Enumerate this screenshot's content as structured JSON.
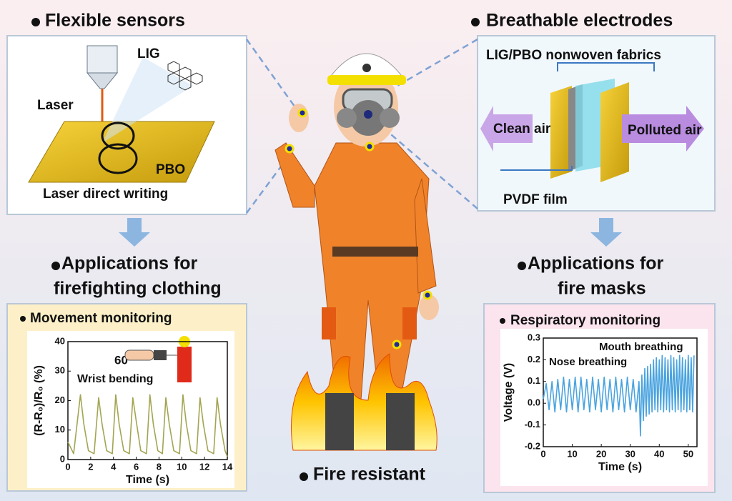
{
  "flexible_sensors": {
    "heading": "Flexible sensors",
    "lig": "LIG",
    "laser": "Laser",
    "pbo": "PBO",
    "caption": "Laser direct writing"
  },
  "breathable_electrodes": {
    "heading": "Breathable electrodes",
    "fabrics": "LIG/PBO nonwoven fabrics",
    "clean_air": "Clean air",
    "polluted_air": "Polluted air",
    "film": "PVDF film"
  },
  "clothing_applications": {
    "lines": [
      "Applications for",
      "firefighting clothing"
    ]
  },
  "mask_applications": {
    "lines": [
      "Applications for",
      "fire masks"
    ]
  },
  "fire_resistant": "Fire resistant",
  "movement_chart": {
    "type": "line",
    "title": "Movement monitoring",
    "ylabel": "(R-R₀)/R₀ (%)",
    "xlabel": "Time (s)",
    "annotations": [
      "60°",
      "Wrist bending"
    ],
    "color": "#a3a552",
    "xlim": [
      0,
      14
    ],
    "ylim": [
      0,
      40
    ],
    "xticks": [
      0,
      2,
      4,
      6,
      8,
      10,
      12,
      14
    ],
    "yticks": [
      0,
      10,
      20,
      30,
      40
    ],
    "x": [
      0,
      0.5,
      1.1,
      1.4,
      1.8,
      2.3,
      2.7,
      3.0,
      3.4,
      3.9,
      4.2,
      4.5,
      4.9,
      5.4,
      5.7,
      6.0,
      6.4,
      6.9,
      7.2,
      7.5,
      7.9,
      8.3,
      8.6,
      8.9,
      9.3,
      9.8,
      10.1,
      10.4,
      10.8,
      11.3,
      11.6,
      11.9,
      12.3,
      12.8,
      13.1,
      13.4,
      13.8,
      14
    ],
    "values": [
      6,
      2,
      22,
      12,
      3,
      2,
      21,
      12,
      3,
      2,
      22,
      12,
      3,
      2,
      21,
      13,
      3,
      2,
      22,
      12,
      3,
      2,
      21,
      12,
      3,
      2,
      22,
      12,
      3,
      2,
      21,
      12,
      3,
      2,
      21,
      12,
      3,
      1
    ]
  },
  "respiratory_chart": {
    "type": "line",
    "title": "Respiratory monitoring",
    "ylabel": "Voltage (V)",
    "xlabel": "Time (s)",
    "annotations": [
      "Mouth breathing",
      "Nose breathing"
    ],
    "color": "#4aa3df",
    "xlim": [
      0,
      53
    ],
    "ylim": [
      -0.2,
      0.3
    ],
    "xticks": [
      0,
      10,
      20,
      30,
      40,
      50
    ],
    "yticks": [
      -0.2,
      -0.1,
      {
        "value": 0,
        "label": "0.0"
      },
      0.1,
      0.2,
      0.3
    ],
    "x": [
      0,
      1,
      2,
      3,
      4,
      5,
      6,
      7,
      8,
      9,
      10,
      11,
      12,
      13,
      14,
      15,
      16,
      17,
      18,
      19,
      20,
      21,
      22,
      23,
      24,
      25,
      26,
      27,
      28,
      29,
      30,
      31,
      32,
      33,
      33.5,
      34,
      34.5,
      35,
      35.5,
      36,
      36.5,
      37,
      37.5,
      38,
      38.5,
      39,
      39.5,
      40,
      40.5,
      41,
      41.5,
      42,
      42.5,
      43,
      43.5,
      44,
      44.5,
      45,
      45.5,
      46,
      46.5,
      47,
      47.5,
      48,
      48.5,
      49,
      49.5,
      50,
      50.5,
      51,
      51.5,
      52
    ],
    "values": [
      0.02,
      0.09,
      -0.03,
      0.1,
      -0.04,
      0.11,
      -0.03,
      0.12,
      -0.04,
      0.11,
      -0.03,
      0.12,
      -0.04,
      0.12,
      -0.03,
      0.11,
      -0.04,
      0.12,
      -0.03,
      0.11,
      -0.04,
      0.12,
      -0.03,
      0.11,
      -0.04,
      0.12,
      -0.03,
      0.11,
      -0.04,
      0.12,
      -0.03,
      0.11,
      -0.04,
      0.1,
      -0.15,
      0.13,
      -0.08,
      0.16,
      -0.06,
      0.17,
      -0.05,
      0.18,
      -0.04,
      0.2,
      -0.03,
      0.21,
      -0.04,
      0.2,
      -0.03,
      0.22,
      -0.04,
      0.21,
      -0.03,
      0.2,
      -0.04,
      0.22,
      -0.03,
      0.21,
      -0.04,
      0.2,
      -0.03,
      0.22,
      -0.04,
      0.21,
      -0.03,
      0.2,
      -0.04,
      0.22,
      -0.03,
      0.21,
      -0.04,
      0.22
    ]
  }
}
